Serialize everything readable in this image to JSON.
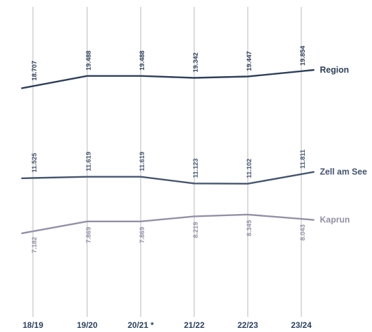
{
  "chart_data": {
    "type": "line",
    "title": "",
    "xlabel": "",
    "ylabel": "",
    "categories": [
      "18/19",
      "19/20",
      "20/21 *",
      "21/22",
      "22/23",
      "23/24"
    ],
    "grid": "vertical",
    "legend": "right end labels",
    "series": [
      {
        "name": "Region",
        "color": "#2d3e58",
        "values": [
          18707,
          19488,
          19488,
          19342,
          19447,
          19854
        ],
        "labels": [
          "18.707",
          "19.488",
          "19.488",
          "19.342",
          "19.447",
          "19.854"
        ]
      },
      {
        "name": "Zell am See",
        "color": "#44546f",
        "values": [
          11525,
          11619,
          11619,
          11123,
          11102,
          11811
        ],
        "labels": [
          "11.525",
          "11.619",
          "11.619",
          "11.123",
          "11.102",
          "11.811"
        ]
      },
      {
        "name": "Kaprun",
        "color": "#948fa6",
        "values": [
          7182,
          7869,
          7869,
          8219,
          8345,
          8043
        ],
        "labels": [
          "7.182",
          "7.869",
          "7.869",
          "8.219",
          "8.345",
          "8.043"
        ]
      }
    ]
  }
}
